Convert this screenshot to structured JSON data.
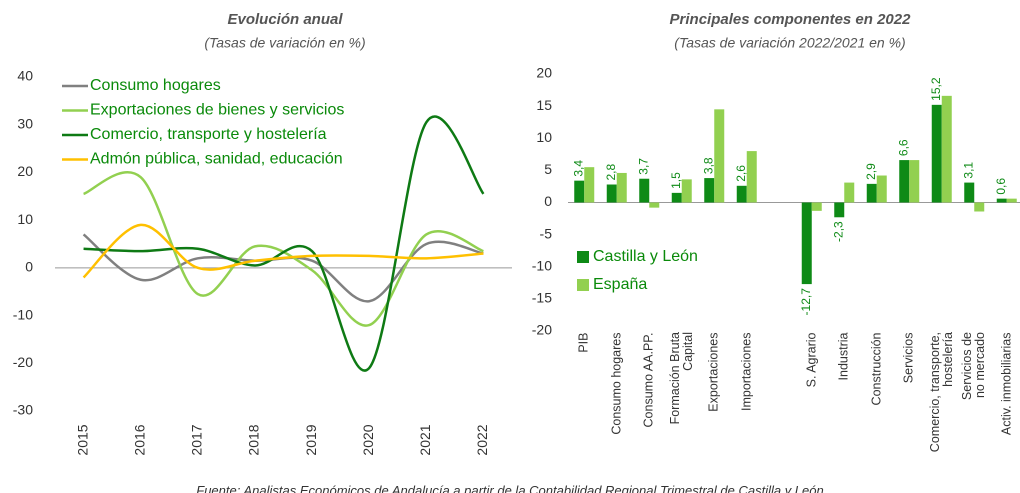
{
  "chart_data": [
    {
      "type": "line",
      "title": "Evolución anual",
      "subtitle": "(Tasas de variación en %)",
      "x": [
        "2015",
        "2016",
        "2017",
        "2018",
        "2019",
        "2020",
        "2021",
        "2022"
      ],
      "series": [
        {
          "name": "Consumo hogares",
          "color": "#808080",
          "values": [
            7,
            -2.5,
            2,
            1.5,
            1.5,
            -7,
            5,
            3
          ]
        },
        {
          "name": "Exportaciones de bienes y servicios",
          "color": "#92d050",
          "values": [
            15.5,
            19,
            -5.5,
            4.5,
            -0.5,
            -12,
            7,
            3.5
          ]
        },
        {
          "name": "Comercio, transporte y hostelería",
          "color": "#0e7a14",
          "values": [
            4,
            3.5,
            4,
            0.5,
            3.5,
            -21,
            30.5,
            15.5
          ]
        },
        {
          "name": "Admón pública, sanidad, educación",
          "color": "#ffc000",
          "values": [
            -2,
            9,
            0,
            1.5,
            2.5,
            2.5,
            2,
            3
          ]
        }
      ],
      "ylim": [
        -30,
        40
      ],
      "yticks": [
        -30,
        -20,
        -10,
        0,
        10,
        20,
        30,
        40
      ],
      "legend": "upper left",
      "legend_color": "#0a8a0a"
    },
    {
      "type": "bar",
      "title": "Principales componentes en 2022",
      "subtitle": "(Tasas de variación 2022/2021 en %)",
      "categories": [
        "PIB",
        "Consumo hogares",
        "Consumo AA.PP.",
        "Formación Bruta\nCapital",
        "Exportaciones",
        "Importaciones",
        null,
        "S. Agrario",
        "Industria",
        "Construcción",
        "Servicios",
        "Comercio, transporte,\nhostelería",
        "Servicios de\nno mercado",
        "Activ. inmobiliarias"
      ],
      "series": [
        {
          "name": "Castilla y León",
          "color": "#0e8a16",
          "values": [
            3.4,
            2.8,
            3.7,
            1.5,
            3.8,
            2.6,
            null,
            -12.7,
            -2.3,
            2.9,
            6.6,
            15.2,
            3.1,
            0.6
          ],
          "value_labels": [
            "3,4",
            "2,8",
            "3,7",
            "1,5",
            "3,8",
            "2,6",
            null,
            "-12,7",
            "-2,3",
            "2,9",
            "6,6",
            "15,2",
            "3,1",
            "0,6"
          ]
        },
        {
          "name": "España",
          "color": "#92d050",
          "values": [
            5.5,
            4.6,
            -0.8,
            3.6,
            14.5,
            8,
            null,
            -1.3,
            3.1,
            4.2,
            6.6,
            16.6,
            -1.4,
            0.6
          ]
        }
      ],
      "ylim": [
        -20,
        20
      ],
      "yticks": [
        -20,
        -15,
        -10,
        -5,
        0,
        5,
        10,
        15,
        20
      ],
      "legend": "lower left",
      "legend_color": "#0a8a0a"
    }
  ],
  "footer": "Fuente: Analistas Económicos de Andalucía a partir de la Contabilidad Regional Trimestral de Castilla y León"
}
